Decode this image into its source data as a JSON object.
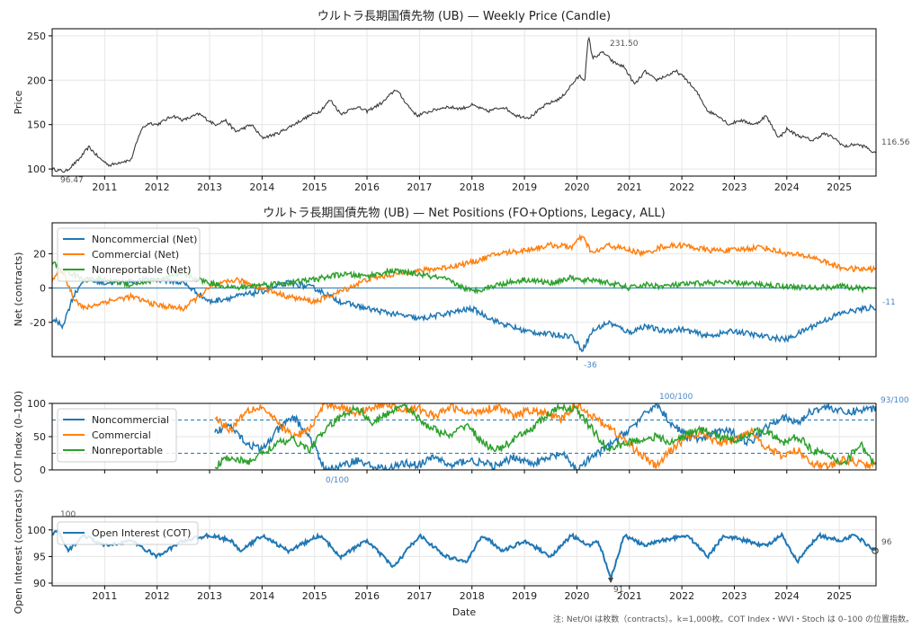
{
  "chart_data": [
    {
      "type": "line",
      "title": "ウルトラ長期国債先物 (UB) — Weekly Price (Candle)",
      "ylabel": "Price",
      "xlabel": "",
      "xlim": [
        2010.0,
        2025.7
      ],
      "ylim": [
        92,
        258
      ],
      "yticks": [
        "100",
        "150",
        "200",
        "250"
      ],
      "xticks": [
        "2011",
        "2012",
        "2013",
        "2014",
        "2015",
        "2016",
        "2017",
        "2018",
        "2019",
        "2020",
        "2021",
        "2022",
        "2023",
        "2024",
        "2025"
      ],
      "grid": true,
      "series": [
        {
          "color": "#3a3a3a",
          "x": [
            2010.0,
            2010.25,
            2010.5,
            2010.7,
            2010.9,
            2011.1,
            2011.3,
            2011.5,
            2011.7,
            2011.85,
            2012.0,
            2012.3,
            2012.5,
            2012.8,
            2013.1,
            2013.3,
            2013.5,
            2013.8,
            2014.0,
            2014.3,
            2014.6,
            2014.9,
            2015.1,
            2015.3,
            2015.5,
            2015.8,
            2016.0,
            2016.3,
            2016.55,
            2016.8,
            2016.95,
            2017.2,
            2017.5,
            2017.8,
            2018.0,
            2018.3,
            2018.6,
            2018.85,
            2019.1,
            2019.4,
            2019.7,
            2019.9,
            2020.05,
            2020.15,
            2020.22,
            2020.3,
            2020.5,
            2020.7,
            2020.9,
            2021.1,
            2021.3,
            2021.5,
            2021.7,
            2021.9,
            2022.1,
            2022.3,
            2022.5,
            2022.7,
            2022.9,
            2023.1,
            2023.4,
            2023.6,
            2023.85,
            2024.0,
            2024.2,
            2024.5,
            2024.7,
            2024.9,
            2025.1,
            2025.3,
            2025.5,
            2025.7
          ],
          "values": [
            100,
            97,
            110,
            125,
            112,
            104,
            108,
            110,
            145,
            152,
            150,
            160,
            155,
            162,
            150,
            155,
            142,
            150,
            135,
            140,
            150,
            160,
            165,
            178,
            162,
            170,
            165,
            175,
            190,
            170,
            160,
            165,
            170,
            168,
            172,
            165,
            170,
            160,
            158,
            172,
            180,
            195,
            205,
            200,
            250,
            225,
            231.5,
            220,
            215,
            195,
            210,
            200,
            205,
            210,
            200,
            185,
            165,
            160,
            150,
            155,
            150,
            160,
            135,
            145,
            138,
            132,
            140,
            135,
            125,
            128,
            125,
            116.56
          ]
        }
      ],
      "annotations": [
        "231.50",
        "96.47",
        "116.56"
      ]
    },
    {
      "type": "line",
      "title": "ウルトラ長期国債先物 (UB) — Net Positions (FO+Options, Legacy, ALL)",
      "ylabel": "Net (contracts)",
      "xlim": [
        2010.0,
        2025.7
      ],
      "ylim": [
        -40,
        38
      ],
      "yticks": [
        "-20",
        "0",
        "20"
      ],
      "grid": true,
      "legend": "top-left",
      "zero_line": true,
      "series": [
        {
          "name": "Noncommercial (Net)",
          "color": "#1f77b4",
          "x": [
            2010.0,
            2010.2,
            2010.4,
            2010.6,
            2011.0,
            2011.5,
            2012.0,
            2012.5,
            2013.0,
            2013.5,
            2014.0,
            2014.5,
            2015.0,
            2015.5,
            2016.0,
            2016.5,
            2017.0,
            2017.5,
            2018.0,
            2018.5,
            2019.0,
            2019.5,
            2019.9,
            2020.1,
            2020.3,
            2020.6,
            2021.0,
            2021.3,
            2021.6,
            2022.0,
            2022.5,
            2023.0,
            2023.5,
            2024.0,
            2024.5,
            2025.0,
            2025.3,
            2025.7
          ],
          "values": [
            -18,
            -22,
            -5,
            5,
            3,
            4,
            5,
            3,
            -8,
            -5,
            -2,
            3,
            0,
            -8,
            -12,
            -15,
            -18,
            -15,
            -12,
            -20,
            -25,
            -27,
            -28,
            -36,
            -25,
            -20,
            -26,
            -22,
            -25,
            -24,
            -28,
            -25,
            -28,
            -30,
            -22,
            -15,
            -13,
            -11
          ]
        },
        {
          "name": "Commercial (Net)",
          "color": "#ff7f0e",
          "x": [
            2010.0,
            2010.2,
            2010.4,
            2010.6,
            2011.0,
            2011.5,
            2012.0,
            2012.5,
            2013.0,
            2013.5,
            2014.0,
            2014.5,
            2015.0,
            2015.5,
            2016.0,
            2016.5,
            2017.0,
            2017.5,
            2018.0,
            2018.5,
            2019.0,
            2019.5,
            2019.9,
            2020.1,
            2020.3,
            2020.6,
            2021.0,
            2021.3,
            2021.6,
            2022.0,
            2022.5,
            2023.0,
            2023.5,
            2024.0,
            2024.5,
            2025.0,
            2025.3,
            2025.7
          ],
          "values": [
            5,
            10,
            -5,
            -12,
            -8,
            -5,
            -10,
            -12,
            0,
            5,
            0,
            -5,
            -8,
            -2,
            5,
            8,
            10,
            12,
            15,
            20,
            22,
            25,
            24,
            30,
            20,
            25,
            22,
            20,
            24,
            25,
            22,
            22,
            24,
            20,
            18,
            12,
            11,
            11
          ]
        },
        {
          "name": "Nonreportable (Net)",
          "color": "#2ca02c",
          "x": [
            2010.0,
            2010.2,
            2010.4,
            2010.6,
            2011.0,
            2011.5,
            2012.0,
            2012.5,
            2013.0,
            2013.5,
            2014.0,
            2014.5,
            2015.0,
            2015.5,
            2016.0,
            2016.5,
            2017.0,
            2017.5,
            2018.0,
            2018.5,
            2019.0,
            2019.5,
            2019.9,
            2020.1,
            2020.3,
            2020.6,
            2021.0,
            2021.3,
            2021.6,
            2022.0,
            2022.5,
            2023.0,
            2023.5,
            2024.0,
            2024.5,
            2025.0,
            2025.3,
            2025.7
          ],
          "values": [
            15,
            10,
            8,
            5,
            5,
            2,
            5,
            8,
            3,
            0,
            2,
            3,
            5,
            8,
            7,
            10,
            8,
            5,
            -2,
            2,
            5,
            3,
            6,
            4,
            5,
            3,
            0,
            2,
            1,
            2,
            3,
            3,
            2,
            1,
            0,
            1,
            0,
            -1
          ]
        }
      ],
      "annotations": [
        "-11",
        "-36"
      ]
    },
    {
      "type": "line",
      "title": "",
      "ylabel": "COT Index (0–100)",
      "xlim": [
        2010.0,
        2025.7
      ],
      "ylim": [
        0,
        100
      ],
      "yticks": [
        "0",
        "50",
        "100"
      ],
      "grid": true,
      "legend": "top-left",
      "reference_lines": [
        75,
        25
      ],
      "series": [
        {
          "name": "Noncommercial",
          "color": "#1f77b4",
          "x": [
            2013.1,
            2013.4,
            2013.7,
            2014.0,
            2014.3,
            2014.6,
            2014.9,
            2015.2,
            2015.5,
            2015.8,
            2016.1,
            2016.4,
            2016.7,
            2017.0,
            2017.3,
            2017.6,
            2017.9,
            2018.2,
            2018.5,
            2018.8,
            2019.1,
            2019.4,
            2019.7,
            2020.0,
            2020.3,
            2020.6,
            2020.9,
            2021.2,
            2021.5,
            2021.8,
            2022.1,
            2022.4,
            2022.7,
            2023.0,
            2023.3,
            2023.6,
            2023.9,
            2024.2,
            2024.5,
            2024.8,
            2025.1,
            2025.4,
            2025.7
          ],
          "values": [
            55,
            70,
            40,
            30,
            60,
            80,
            50,
            0,
            5,
            15,
            5,
            0,
            10,
            8,
            20,
            5,
            15,
            10,
            5,
            20,
            10,
            15,
            25,
            0,
            20,
            35,
            55,
            75,
            100,
            70,
            50,
            45,
            60,
            55,
            40,
            65,
            80,
            70,
            90,
            95,
            85,
            90,
            93
          ]
        },
        {
          "name": "Commercial",
          "color": "#ff7f0e",
          "x": [
            2013.1,
            2013.4,
            2013.7,
            2014.0,
            2014.3,
            2014.6,
            2014.9,
            2015.2,
            2015.5,
            2015.8,
            2016.1,
            2016.4,
            2016.7,
            2017.0,
            2017.3,
            2017.6,
            2017.9,
            2018.2,
            2018.5,
            2018.8,
            2019.1,
            2019.4,
            2019.7,
            2020.0,
            2020.3,
            2020.6,
            2020.9,
            2021.2,
            2021.5,
            2021.8,
            2022.1,
            2022.4,
            2022.7,
            2023.0,
            2023.3,
            2023.6,
            2023.9,
            2024.2,
            2024.5,
            2024.8,
            2025.1,
            2025.4,
            2025.7
          ],
          "values": [
            80,
            60,
            90,
            95,
            70,
            50,
            60,
            100,
            95,
            85,
            95,
            100,
            90,
            92,
            80,
            95,
            85,
            90,
            95,
            80,
            90,
            85,
            75,
            100,
            80,
            65,
            45,
            25,
            5,
            30,
            50,
            55,
            40,
            45,
            60,
            35,
            20,
            30,
            10,
            5,
            15,
            10,
            7
          ]
        },
        {
          "name": "Nonreportable",
          "color": "#2ca02c",
          "x": [
            2013.1,
            2013.4,
            2013.7,
            2014.0,
            2014.3,
            2014.6,
            2014.9,
            2015.2,
            2015.5,
            2015.8,
            2016.1,
            2016.4,
            2016.7,
            2017.0,
            2017.3,
            2017.6,
            2017.9,
            2018.2,
            2018.5,
            2018.8,
            2019.1,
            2019.4,
            2019.7,
            2020.0,
            2020.3,
            2020.6,
            2020.9,
            2021.2,
            2021.5,
            2021.8,
            2022.1,
            2022.4,
            2022.7,
            2023.0,
            2023.3,
            2023.6,
            2023.9,
            2024.2,
            2024.5,
            2024.8,
            2025.1,
            2025.4,
            2025.7
          ],
          "values": [
            5,
            20,
            10,
            25,
            40,
            45,
            30,
            60,
            80,
            95,
            70,
            85,
            100,
            75,
            60,
            50,
            70,
            40,
            30,
            45,
            60,
            80,
            95,
            90,
            60,
            30,
            40,
            45,
            50,
            40,
            55,
            60,
            50,
            45,
            55,
            60,
            40,
            50,
            30,
            20,
            10,
            40,
            5
          ]
        }
      ],
      "annotations": [
        "100/100",
        "0/100",
        "93/100"
      ]
    },
    {
      "type": "line",
      "title": "",
      "ylabel": "Open Interest (contracts)",
      "xlabel": "Date",
      "xlim": [
        2010.0,
        2025.7
      ],
      "ylim": [
        89.5,
        102.5
      ],
      "yticks": [
        "90",
        "95",
        "100"
      ],
      "xticks": [
        "2011",
        "2012",
        "2013",
        "2014",
        "2015",
        "2016",
        "2017",
        "2018",
        "2019",
        "2020",
        "2021",
        "2022",
        "2023",
        "2024",
        "2025"
      ],
      "grid": true,
      "legend": "top-left",
      "series": [
        {
          "name": "Open Interest (COT)",
          "color": "#1f77b4",
          "x": [
            2010.0,
            2010.1,
            2010.3,
            2010.6,
            2011.0,
            2011.5,
            2012.0,
            2012.5,
            2013.0,
            2013.4,
            2013.6,
            2014.0,
            2014.5,
            2015.1,
            2015.5,
            2016.0,
            2016.5,
            2017.0,
            2017.5,
            2017.9,
            2018.2,
            2018.6,
            2019.0,
            2019.5,
            2019.9,
            2020.2,
            2020.4,
            2020.65,
            2020.9,
            2021.3,
            2021.6,
            2022.1,
            2022.5,
            2022.8,
            2023.2,
            2023.6,
            2023.9,
            2024.2,
            2024.6,
            2025.0,
            2025.3,
            2025.7
          ],
          "values": [
            99,
            100,
            96,
            99,
            97,
            98,
            95,
            98,
            99,
            98,
            96,
            99,
            96,
            99,
            95,
            98,
            93,
            99,
            95,
            94,
            99,
            96,
            98,
            95,
            99,
            97,
            98,
            91,
            99,
            97,
            98,
            99,
            95,
            99,
            98,
            97,
            99,
            94,
            99,
            98,
            99,
            96
          ]
        }
      ],
      "annotations": [
        "100",
        "91",
        "96"
      ]
    }
  ],
  "footnote": "注: Net/OI は枚数（contracts）。k=1,000枚。COT Index・WVI・Stoch は 0–100 の位置指数。"
}
